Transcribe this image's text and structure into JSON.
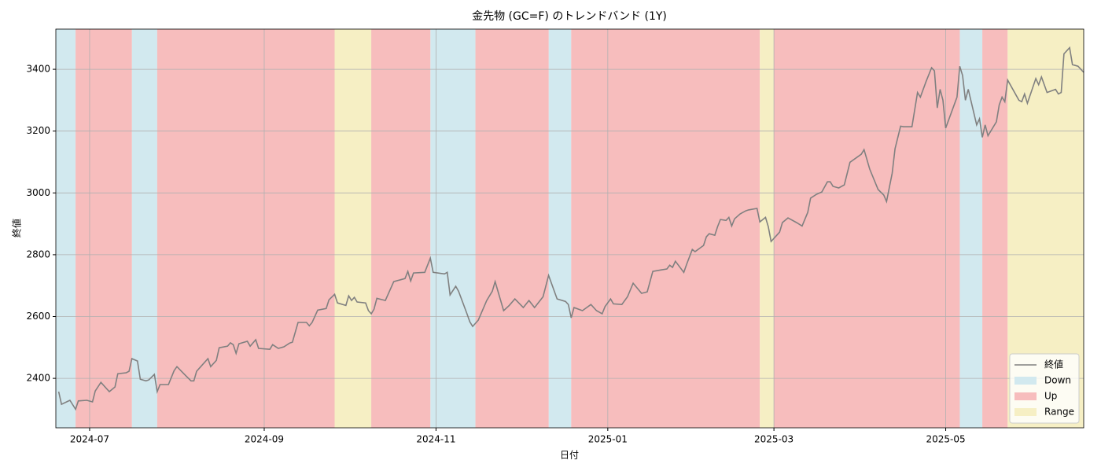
{
  "chart_data": {
    "type": "line",
    "title": "金先物 (GC=F) のトレンドバンド (1Y)",
    "xlabel": "日付",
    "ylabel": "終値",
    "x": [
      -11,
      -10,
      -7,
      -5,
      -4,
      -1,
      1,
      2,
      4,
      7,
      9,
      10,
      13,
      14,
      15,
      17,
      18,
      20,
      21,
      23,
      24,
      25,
      28,
      30,
      31,
      34,
      36,
      37,
      38,
      42,
      43,
      45,
      46,
      49,
      50,
      51,
      52,
      53,
      56,
      57,
      59,
      60,
      64,
      65,
      67,
      69,
      71,
      72,
      74,
      77,
      78,
      79,
      81,
      84,
      85,
      87,
      88,
      91,
      92,
      93,
      94,
      95,
      98,
      99,
      100,
      101,
      102,
      105,
      108,
      112,
      113,
      114,
      115,
      119,
      121,
      122,
      126,
      127,
      128,
      130,
      131,
      134,
      135,
      136,
      138,
      141,
      143,
      144,
      147,
      149,
      151,
      154,
      156,
      158,
      161,
      163,
      166,
      169,
      170,
      171,
      172,
      175,
      178,
      180,
      182,
      183,
      185,
      186,
      189,
      191,
      193,
      196,
      198,
      200,
      203,
      205,
      206,
      207,
      208,
      211,
      212,
      214,
      215,
      218,
      219,
      220,
      222,
      223,
      224,
      226,
      227,
      228,
      229,
      231,
      233,
      234,
      237,
      238,
      240,
      241,
      242,
      245,
      246,
      248,
      251,
      253,
      255,
      256,
      258,
      260,
      262,
      263,
      264,
      266,
      268,
      270,
      274,
      275,
      277,
      280,
      282,
      283,
      285,
      286,
      288,
      289,
      292,
      294,
      295,
      297,
      299,
      300,
      301,
      302,
      303,
      304,
      308,
      309,
      310,
      311,
      312,
      315,
      316,
      317,
      318,
      319,
      322,
      323,
      324,
      325,
      326,
      330,
      331,
      332,
      333,
      336,
      337,
      338,
      340,
      343,
      344,
      345,
      346,
      348,
      349,
      351,
      353
    ],
    "series": [
      {
        "name": "終値",
        "color": "#808080",
        "values": [
          2357,
          2316,
          2329,
          2300,
          2327,
          2329,
          2324,
          2359,
          2387,
          2357,
          2372,
          2415,
          2418,
          2423,
          2464,
          2456,
          2397,
          2392,
          2395,
          2413,
          2357,
          2380,
          2380,
          2425,
          2438,
          2410,
          2392,
          2392,
          2423,
          2464,
          2438,
          2458,
          2499,
          2504,
          2515,
          2509,
          2481,
          2512,
          2520,
          2504,
          2525,
          2497,
          2494,
          2509,
          2497,
          2502,
          2514,
          2517,
          2581,
          2581,
          2570,
          2581,
          2621,
          2626,
          2654,
          2672,
          2644,
          2636,
          2667,
          2652,
          2662,
          2647,
          2644,
          2619,
          2609,
          2624,
          2659,
          2652,
          2713,
          2723,
          2746,
          2715,
          2741,
          2743,
          2789,
          2743,
          2738,
          2743,
          2670,
          2698,
          2682,
          2609,
          2583,
          2568,
          2588,
          2652,
          2682,
          2713,
          2619,
          2636,
          2657,
          2629,
          2652,
          2629,
          2664,
          2733,
          2657,
          2649,
          2639,
          2596,
          2629,
          2619,
          2639,
          2619,
          2609,
          2632,
          2657,
          2641,
          2639,
          2664,
          2708,
          2675,
          2680,
          2746,
          2751,
          2754,
          2766,
          2759,
          2779,
          2743,
          2769,
          2817,
          2810,
          2830,
          2858,
          2868,
          2863,
          2891,
          2914,
          2911,
          2921,
          2893,
          2916,
          2932,
          2942,
          2945,
          2950,
          2906,
          2921,
          2891,
          2843,
          2873,
          2904,
          2919,
          2904,
          2893,
          2937,
          2983,
          2995,
          3003,
          3036,
          3036,
          3021,
          3016,
          3026,
          3099,
          3125,
          3140,
          3077,
          3011,
          2993,
          2972,
          3064,
          3143,
          3216,
          3214,
          3214,
          3325,
          3310,
          3360,
          3405,
          3395,
          3275,
          3335,
          3300,
          3210,
          3310,
          3410,
          3380,
          3300,
          3335,
          3220,
          3240,
          3180,
          3220,
          3185,
          3230,
          3285,
          3310,
          3295,
          3365,
          3300,
          3295,
          3320,
          3290,
          3370,
          3350,
          3375,
          3325,
          3335,
          3320,
          3325,
          3450,
          3470,
          3415,
          3410,
          3390
        ]
      }
    ],
    "bands": [
      {
        "name": "Down",
        "color": "#d2e9ef",
        "ranges": [
          [
            -12,
            -5
          ],
          [
            15,
            24
          ],
          [
            121,
            137
          ],
          [
            163,
            171
          ],
          [
            309,
            317
          ]
        ]
      },
      {
        "name": "Up",
        "color": "#f7bdbd",
        "ranges": [
          [
            -5,
            15
          ],
          [
            24,
            87
          ],
          [
            100,
            121
          ],
          [
            137,
            163
          ],
          [
            171,
            238
          ],
          [
            243,
            309
          ],
          [
            317,
            326
          ]
        ]
      },
      {
        "name": "Range",
        "color": "#f6efc4",
        "ranges": [
          [
            87,
            100
          ],
          [
            238,
            243
          ],
          [
            326,
            353
          ]
        ]
      }
    ],
    "xlim": [
      -12,
      353
    ],
    "xticks": [
      {
        "value": 0,
        "label": "2024-07"
      },
      {
        "value": 62,
        "label": "2024-09"
      },
      {
        "value": 123,
        "label": "2024-11"
      },
      {
        "value": 184,
        "label": "2025-01"
      },
      {
        "value": 243,
        "label": "2025-03"
      },
      {
        "value": 304,
        "label": "2025-05"
      }
    ],
    "ylim": [
      2240,
      3530
    ],
    "yticks": [
      2400,
      2600,
      2800,
      3000,
      3200,
      3400
    ],
    "grid": true,
    "legend": "lower right"
  }
}
